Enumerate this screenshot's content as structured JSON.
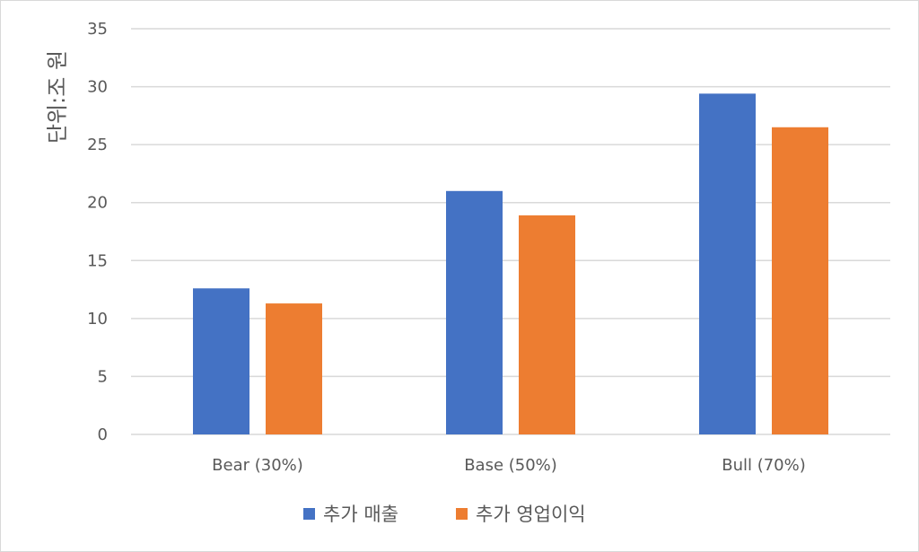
{
  "chart_data": {
    "type": "bar",
    "title": "",
    "xlabel": "",
    "ylabel": "단위:조 원",
    "ylim": [
      0,
      35
    ],
    "yticks": [
      0,
      5,
      10,
      15,
      20,
      25,
      30,
      35
    ],
    "grid": true,
    "legend_position": "bottom",
    "categories": [
      "Bear (30%)",
      "Base (50%)",
      "Bull (70%)"
    ],
    "series": [
      {
        "name": "추가 매출",
        "color": "#4472C4",
        "values": [
          12.6,
          21.0,
          29.4
        ]
      },
      {
        "name": "추가 영업이익",
        "color": "#ED7D31",
        "values": [
          11.3,
          18.9,
          26.5
        ]
      }
    ]
  }
}
